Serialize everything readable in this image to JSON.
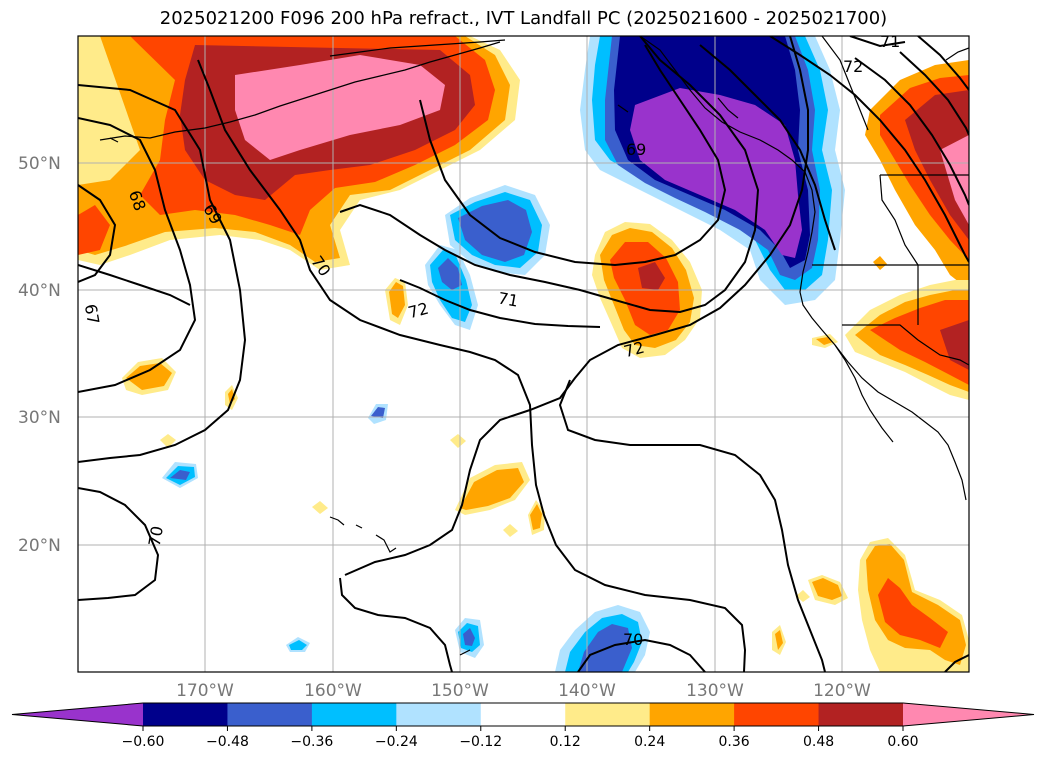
{
  "title": "2025021200 F096 200 hPa refract., IVT Landfall PC (2025021600 - 2025021700)",
  "lat_labels": [
    "50°N",
    "40°N",
    "30°N",
    "20°N"
  ],
  "lon_labels": [
    "170°W",
    "160°W",
    "150°W",
    "140°W",
    "130°W",
    "120°W"
  ],
  "contour_labels": [
    "71",
    "72",
    "68",
    "69",
    "69",
    "70",
    "67",
    "72",
    "71",
    "72",
    "70",
    "70"
  ],
  "colorbar": {
    "colors": [
      "#9933cc",
      "#00008b",
      "#3a5fcd",
      "#00bfff",
      "#b0e2ff",
      "#ffffff",
      "#ffeb8a",
      "#ffa500",
      "#ff4500",
      "#b22222",
      "#ff88b0"
    ],
    "tick_labels": [
      "−0.60",
      "−0.48",
      "−0.36",
      "−0.24",
      "−0.12",
      "0.12",
      "0.24",
      "0.36",
      "0.48",
      "0.60"
    ]
  }
}
